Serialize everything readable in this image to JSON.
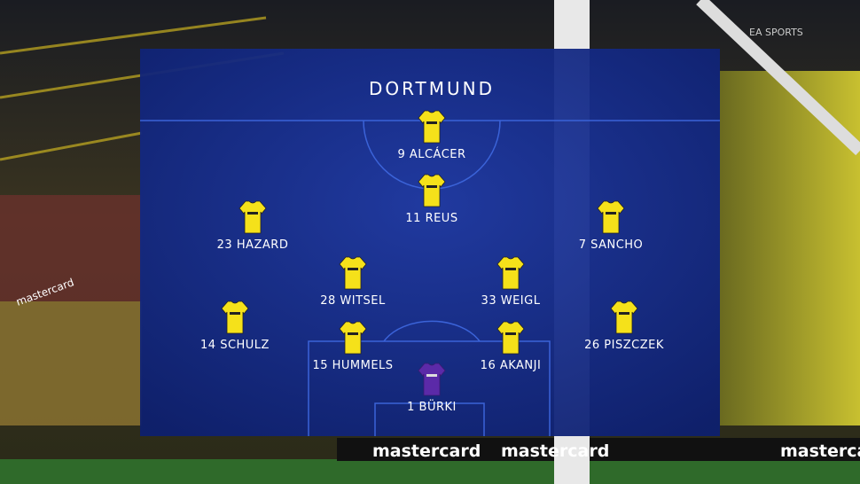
{
  "team": "DORTMUND",
  "watermark": "EA SPORTS",
  "ads": [
    "mastercard",
    "mastercard",
    "mastercard",
    "mastercard"
  ],
  "players": [
    "9 ALCÁCER",
    "11 REUS",
    "23 HAZARD",
    "7 SANCHO",
    "28 WITSEL",
    "33 WEIGL",
    "14 SCHULZ",
    "26 PISZCZEK",
    "15 HUMMELS",
    "16 AKANJI",
    "1 BÜRKI"
  ]
}
